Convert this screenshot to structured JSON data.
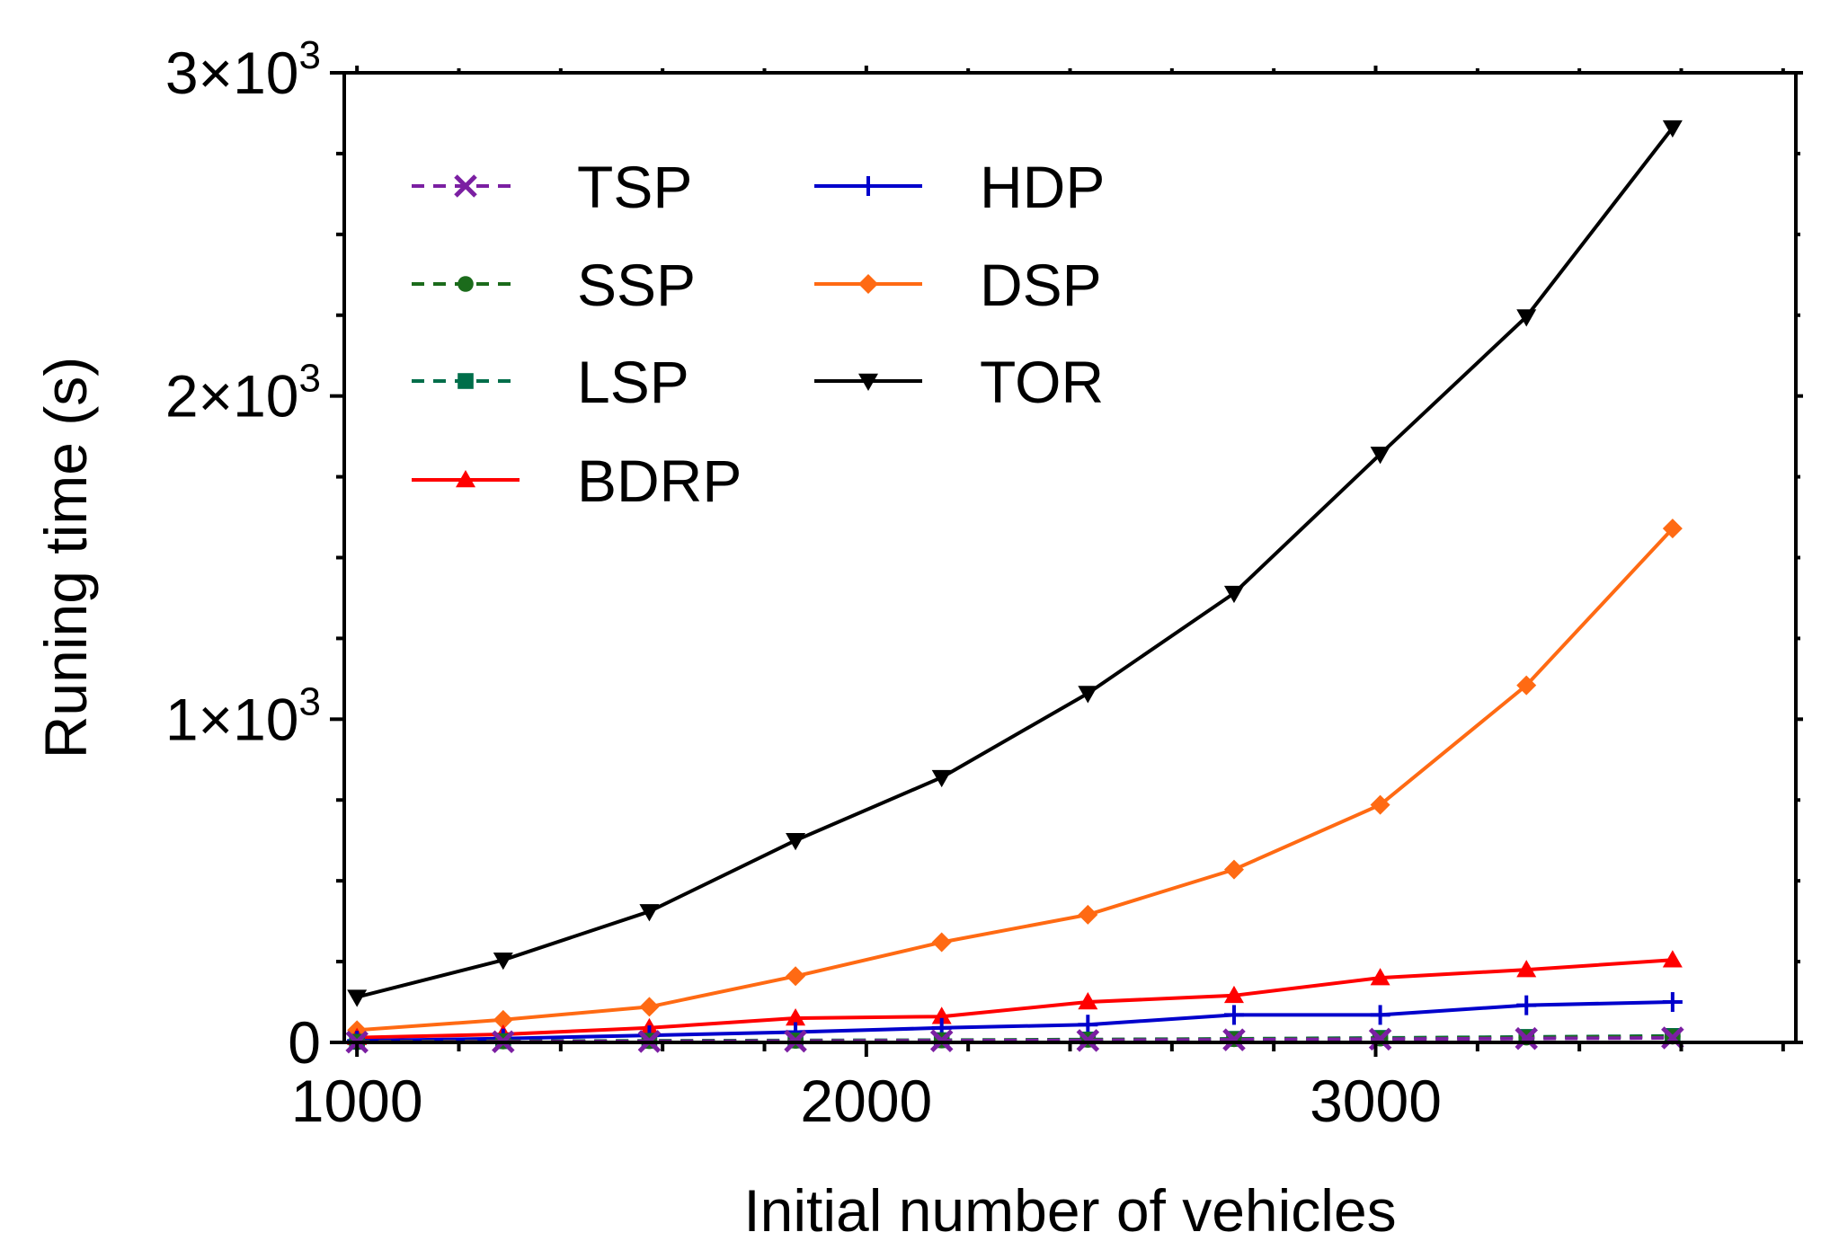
{
  "chart_data": {
    "type": "line",
    "title": "",
    "xlabel": "Initial number of vehicles",
    "ylabel": "Runing time (s)",
    "xlim": [
      975,
      3825
    ],
    "ylim": [
      0,
      3000
    ],
    "x": [
      1000,
      1287,
      1574,
      1861,
      2148,
      2435,
      2722,
      3009,
      3296,
      3583
    ],
    "x_ticks": [
      {
        "value": 1000,
        "label": "1000"
      },
      {
        "value": 2000,
        "label": "2000"
      },
      {
        "value": 3000,
        "label": "3000"
      }
    ],
    "y_ticks": [
      {
        "value": 0,
        "mantissa": "0",
        "exp": ""
      },
      {
        "value": 1000,
        "mantissa": "1×10",
        "exp": "3"
      },
      {
        "value": 2000,
        "mantissa": "2×10",
        "exp": "3"
      },
      {
        "value": 3000,
        "mantissa": "3×10",
        "exp": "3"
      }
    ],
    "legend_position": "top-left",
    "series": [
      {
        "name": "TSP",
        "color": "#7B1FA2",
        "dash": true,
        "marker": "x-mark",
        "values": [
          1,
          2,
          3,
          4,
          5,
          6,
          8,
          10,
          12,
          14
        ]
      },
      {
        "name": "SSP",
        "color": "#1B6B1B",
        "dash": true,
        "marker": "circle",
        "values": [
          2,
          3,
          4,
          5,
          6,
          8,
          10,
          12,
          15,
          18
        ]
      },
      {
        "name": "LSP",
        "color": "#006E4A",
        "dash": true,
        "marker": "square",
        "values": [
          2,
          4,
          5,
          6,
          7,
          9,
          11,
          14,
          17,
          20
        ]
      },
      {
        "name": "BDRP",
        "color": "#FF0000",
        "dash": false,
        "marker": "triangle-up",
        "values": [
          15,
          25,
          45,
          75,
          80,
          125,
          145,
          200,
          225,
          255
        ]
      },
      {
        "name": "HDP",
        "color": "#0000CC",
        "dash": false,
        "marker": "plus",
        "values": [
          5,
          12,
          22,
          32,
          45,
          55,
          85,
          85,
          115,
          125
        ]
      },
      {
        "name": "DSP",
        "color": "#FF6A13",
        "dash": false,
        "marker": "diamond",
        "values": [
          38,
          70,
          110,
          205,
          310,
          395,
          535,
          735,
          1105,
          1590
        ]
      },
      {
        "name": "TOR",
        "color": "#000000",
        "dash": false,
        "marker": "triangle-down",
        "values": [
          140,
          255,
          405,
          625,
          820,
          1080,
          1390,
          1820,
          2245,
          2830
        ]
      }
    ]
  }
}
